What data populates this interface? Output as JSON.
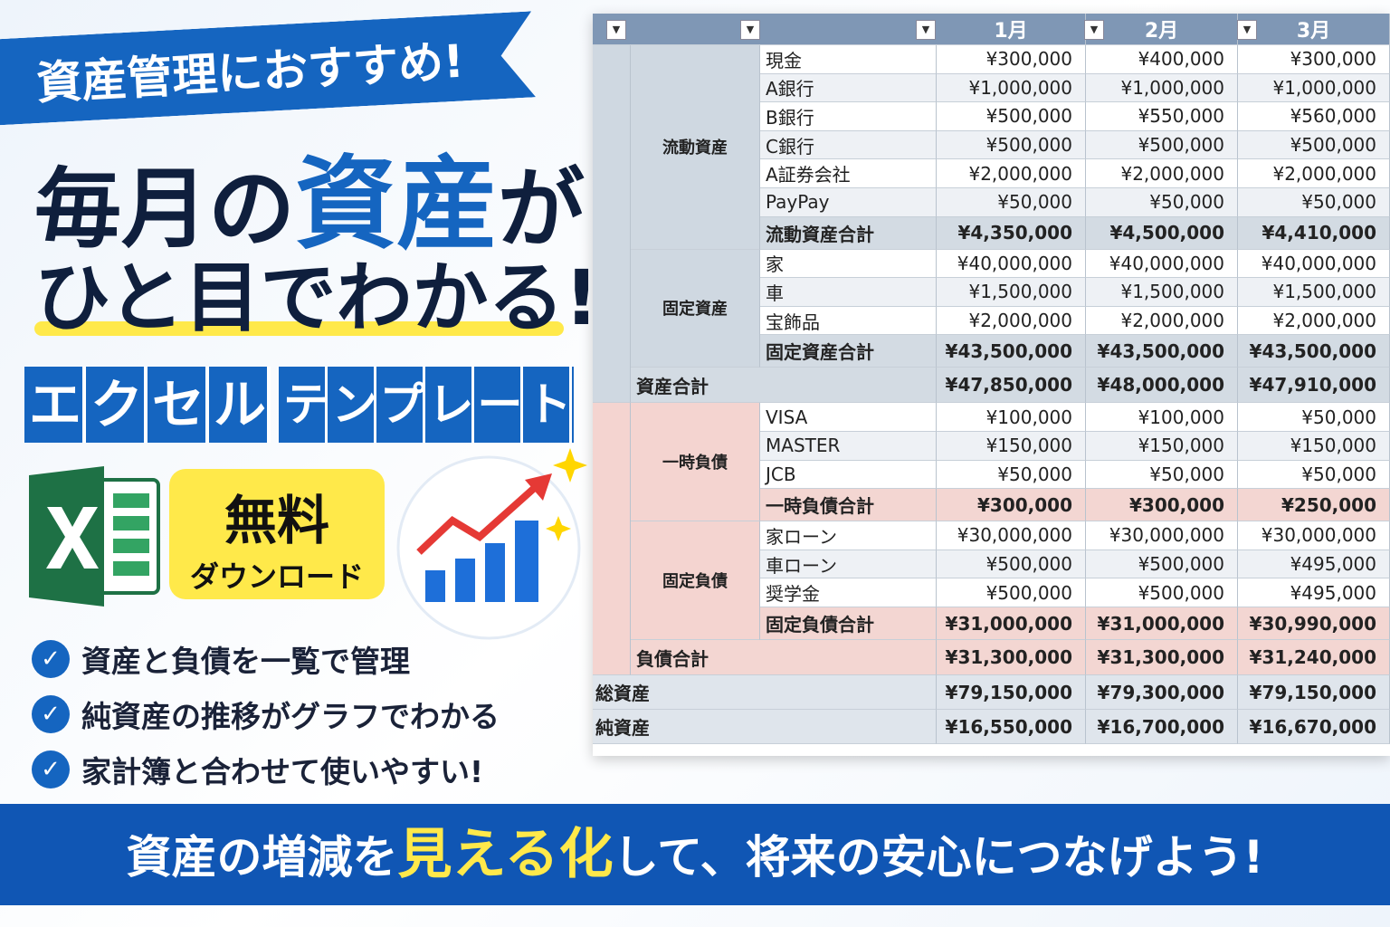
{
  "ribbon": "資産管理におすすめ!",
  "headline": {
    "line1": [
      "毎月の",
      "資産",
      "が"
    ],
    "line2": "ひと目でわかる!"
  },
  "template_words": [
    "エクセル",
    "テンプレート"
  ],
  "badge": {
    "line1": "無料",
    "line2": "ダウンロード"
  },
  "features": [
    "資産と負債を一覧で管理",
    "純資産の推移がグラフでわかる",
    "家計簿と合わせて使いやすい!"
  ],
  "footer": [
    "資産の増減を",
    "見える化",
    "して、将来の安心につなげよう!"
  ],
  "table": {
    "months": [
      "1月",
      "2月",
      "3月"
    ],
    "assets": {
      "groups": [
        {
          "label": "流動資産",
          "items": [
            {
              "name": "現金",
              "values": [
                "¥300,000",
                "¥400,000",
                "¥300,000"
              ]
            },
            {
              "name": "A銀行",
              "values": [
                "¥1,000,000",
                "¥1,000,000",
                "¥1,000,000"
              ]
            },
            {
              "name": "B銀行",
              "values": [
                "¥500,000",
                "¥550,000",
                "¥560,000"
              ]
            },
            {
              "name": "C銀行",
              "values": [
                "¥500,000",
                "¥500,000",
                "¥500,000"
              ]
            },
            {
              "name": "A証券会社",
              "values": [
                "¥2,000,000",
                "¥2,000,000",
                "¥2,000,000"
              ]
            },
            {
              "name": "PayPay",
              "values": [
                "¥50,000",
                "¥50,000",
                "¥50,000"
              ]
            }
          ],
          "subtotal": {
            "label": "流動資産合計",
            "values": [
              "¥4,350,000",
              "¥4,500,000",
              "¥4,410,000"
            ]
          }
        },
        {
          "label": "固定資産",
          "items": [
            {
              "name": "家",
              "values": [
                "¥40,000,000",
                "¥40,000,000",
                "¥40,000,000"
              ]
            },
            {
              "name": "車",
              "values": [
                "¥1,500,000",
                "¥1,500,000",
                "¥1,500,000"
              ]
            },
            {
              "name": "宝飾品",
              "values": [
                "¥2,000,000",
                "¥2,000,000",
                "¥2,000,000"
              ]
            }
          ],
          "subtotal": {
            "label": "固定資産合計",
            "values": [
              "¥43,500,000",
              "¥43,500,000",
              "¥43,500,000"
            ]
          }
        }
      ],
      "total": {
        "label": "資産合計",
        "values": [
          "¥47,850,000",
          "¥48,000,000",
          "¥47,910,000"
        ]
      }
    },
    "liabilities": {
      "groups": [
        {
          "label": "一時負債",
          "items": [
            {
              "name": "VISA",
              "values": [
                "¥100,000",
                "¥100,000",
                "¥50,000"
              ]
            },
            {
              "name": "MASTER",
              "values": [
                "¥150,000",
                "¥150,000",
                "¥150,000"
              ]
            },
            {
              "name": "JCB",
              "values": [
                "¥50,000",
                "¥50,000",
                "¥50,000"
              ]
            }
          ],
          "subtotal": {
            "label": "一時負債合計",
            "values": [
              "¥300,000",
              "¥300,000",
              "¥250,000"
            ]
          }
        },
        {
          "label": "固定負債",
          "items": [
            {
              "name": "家ローン",
              "values": [
                "¥30,000,000",
                "¥30,000,000",
                "¥30,000,000"
              ]
            },
            {
              "name": "車ローン",
              "values": [
                "¥500,000",
                "¥500,000",
                "¥495,000"
              ]
            },
            {
              "name": "奨学金",
              "values": [
                "¥500,000",
                "¥500,000",
                "¥495,000"
              ]
            }
          ],
          "subtotal": {
            "label": "固定負債合計",
            "values": [
              "¥31,000,000",
              "¥31,000,000",
              "¥30,990,000"
            ]
          }
        }
      ],
      "total": {
        "label": "負債合計",
        "values": [
          "¥31,300,000",
          "¥31,300,000",
          "¥31,240,000"
        ]
      }
    },
    "summary": [
      {
        "label": "総資産",
        "values": [
          "¥79,150,000",
          "¥79,300,000",
          "¥79,150,000"
        ]
      },
      {
        "label": "純資産",
        "values": [
          "¥16,550,000",
          "¥16,700,000",
          "¥16,670,000"
        ]
      }
    ]
  }
}
